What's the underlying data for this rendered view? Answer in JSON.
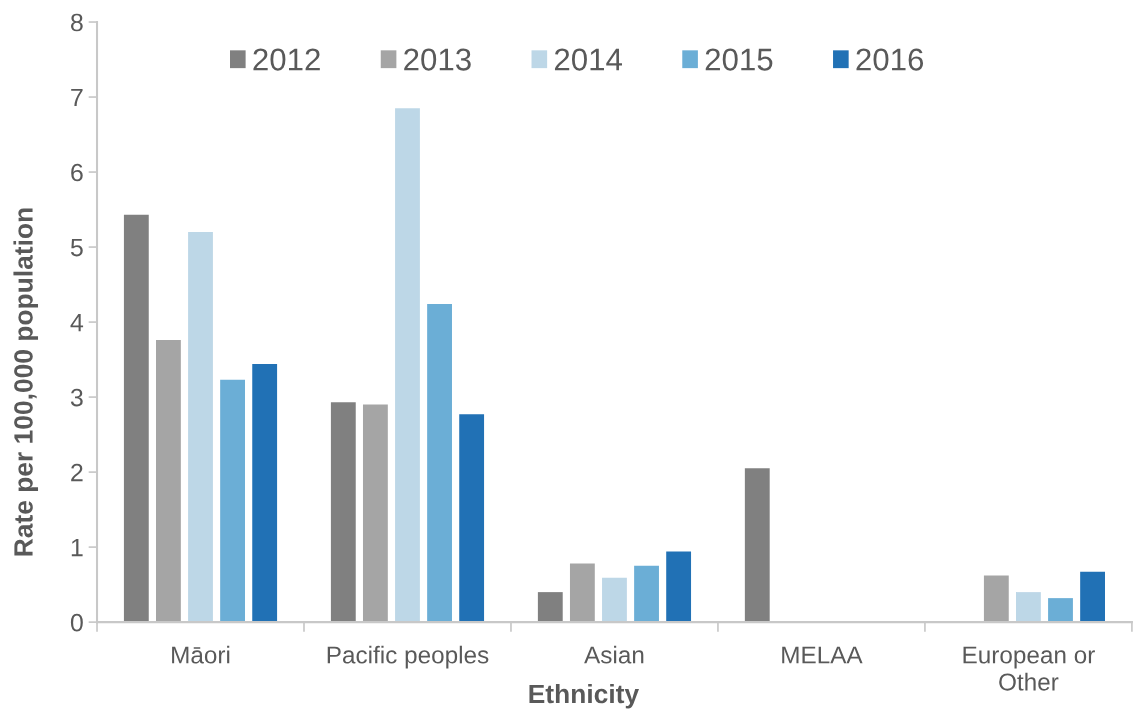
{
  "chart_data": {
    "type": "bar",
    "xlabel": "Ethnicity",
    "ylabel": "Rate per 100,000 population",
    "categories": [
      "Māori",
      "Pacific peoples",
      "Asian",
      "MELAA",
      "European or\nOther"
    ],
    "series": [
      {
        "name": "2012",
        "color": "#808080",
        "values": [
          5.43,
          2.93,
          0.4,
          2.05,
          null
        ]
      },
      {
        "name": "2013",
        "color": "#a5a5a5",
        "values": [
          3.76,
          2.9,
          0.78,
          null,
          0.62
        ]
      },
      {
        "name": "2014",
        "color": "#bdd7e7",
        "values": [
          5.2,
          6.85,
          0.59,
          null,
          0.4
        ]
      },
      {
        "name": "2015",
        "color": "#6baed6",
        "values": [
          3.23,
          4.24,
          0.75,
          null,
          0.32
        ]
      },
      {
        "name": "2016",
        "color": "#2171b5",
        "values": [
          3.44,
          2.77,
          0.94,
          null,
          0.67
        ]
      }
    ],
    "ylim": [
      0,
      8
    ],
    "yticks": [
      0,
      1,
      2,
      3,
      4,
      5,
      6,
      7,
      8
    ],
    "legend": "top",
    "grid": false
  }
}
